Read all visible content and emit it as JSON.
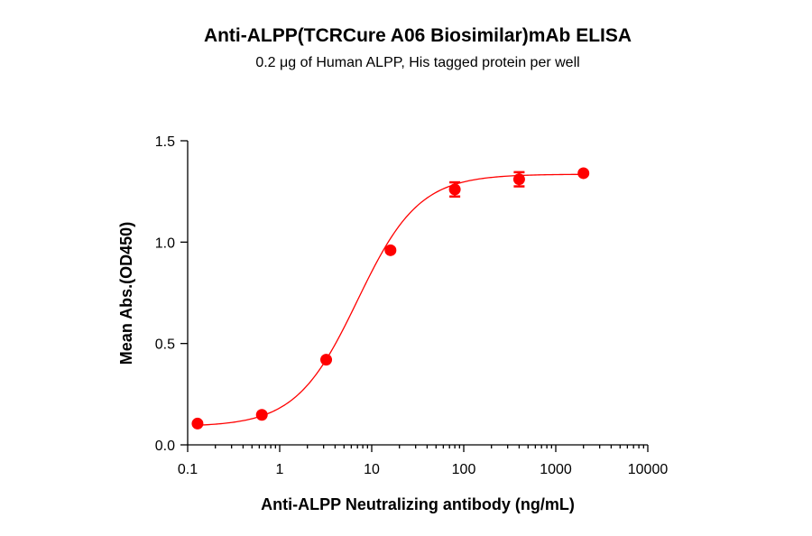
{
  "chart_data": {
    "type": "scatter",
    "title": "Anti-ALPP(TCRCure A06 Biosimilar)mAb ELISA",
    "subtitle": "0.2 μg of Human ALPP, His tagged protein per well",
    "xlabel": "Anti-ALPP Neutralizing antibody  (ng/mL)",
    "ylabel": "Mean Abs.(OD450)",
    "xscale": "log",
    "xlim": [
      0.1,
      10000
    ],
    "ylim": [
      0,
      1.5
    ],
    "xticks": [
      "0.1",
      "1",
      "10",
      "100",
      "1000",
      "10000"
    ],
    "yticks": [
      "0.0",
      "0.5",
      "1.0",
      "1.5"
    ],
    "grid": false,
    "color": "#ff0000",
    "series": [
      {
        "x": [
          0.128,
          0.64,
          3.2,
          16,
          80,
          400,
          2000
        ],
        "y": [
          0.105,
          0.148,
          0.42,
          0.96,
          1.26,
          1.31,
          1.34
        ],
        "error": [
          0.0,
          0.0,
          0.0,
          0.0,
          0.035,
          0.035,
          0.0
        ]
      }
    ],
    "fit": {
      "type": "4PL",
      "bottom": 0.09,
      "top": 1.335,
      "ec50": 7.0,
      "hill": 1.3
    }
  }
}
